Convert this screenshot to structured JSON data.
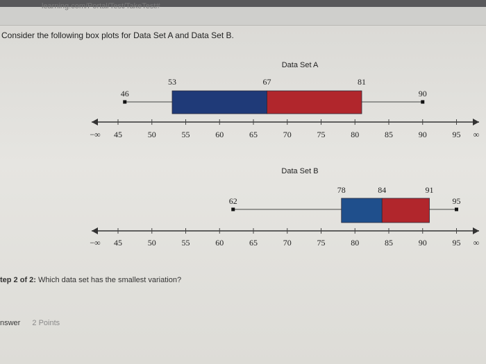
{
  "header": {
    "url_fragment": "learning.com/Portal/Test/TakeTest#"
  },
  "question": {
    "text": "Consider the following box plots for Data Set A and Data Set B."
  },
  "chart_data": [
    {
      "type": "boxplot",
      "title": "Data Set A",
      "min": 46,
      "q1": 53,
      "median": 67,
      "q3": 81,
      "max": 90,
      "axis": {
        "ticks": [
          "45",
          "50",
          "55",
          "60",
          "65",
          "70",
          "75",
          "80",
          "85",
          "90",
          "95"
        ],
        "left_label": "−∞",
        "right_label": "∞",
        "xlim": [
          40,
          98
        ]
      },
      "colors": {
        "lower_box": "#1f3a78",
        "upper_box": "#b1262c"
      }
    },
    {
      "type": "boxplot",
      "title": "Data Set B",
      "min": 62,
      "q1": 78,
      "median": 84,
      "q3": 91,
      "max": 95,
      "axis": {
        "ticks": [
          "45",
          "50",
          "55",
          "60",
          "65",
          "70",
          "75",
          "80",
          "85",
          "90",
          "95"
        ],
        "left_label": "−∞",
        "right_label": "∞",
        "xlim": [
          40,
          98
        ]
      },
      "colors": {
        "lower_box": "#1f4f8c",
        "upper_box": "#b1262c"
      }
    }
  ],
  "step": {
    "prefix": "tep 2 of 2:",
    "text": "Which data set has the smallest variation?"
  },
  "answer": {
    "label": "nswer",
    "points": "2 Points"
  }
}
